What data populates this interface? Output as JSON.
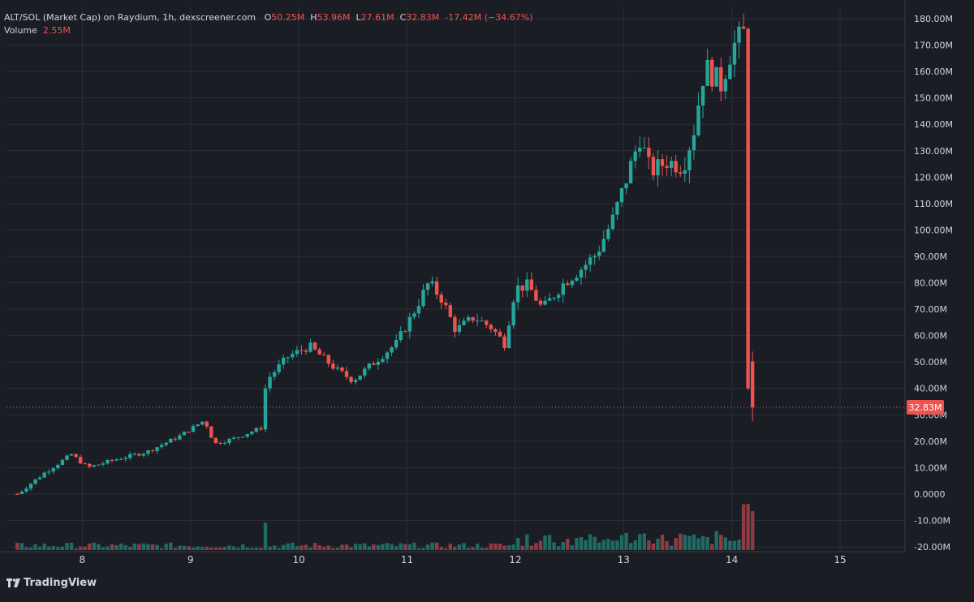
{
  "legend": {
    "symbol": "ALT/SOL (Market Cap) on Raydium, 1h, dexscreener.com",
    "open_label": "O",
    "open": "50.25M",
    "high_label": "H",
    "high": "53.96M",
    "low_label": "L",
    "low": "27.61M",
    "close_label": "C",
    "close": "32.83M",
    "change": "-17.42M (−34.67%)",
    "volume_label": "Volume",
    "volume": "2.55M"
  },
  "brand": {
    "name": "TradingView",
    "logo_icon": "tradingview-logo-icon"
  },
  "colors": {
    "background": "#1b1d24",
    "grid": "#2a2e39",
    "up": "#26a69a",
    "down": "#ef5350",
    "text": "#d1d4dc",
    "volume_up": "#1f6b63",
    "volume_down": "#8f3b43"
  },
  "chart_data": {
    "type": "candlestick",
    "interval": "1h",
    "symbol": "ALT/SOL (Market Cap) on Raydium",
    "y_unit": "M",
    "ylim": [
      -20,
      180
    ],
    "y_ticks": [
      "180.00M",
      "170.00M",
      "160.00M",
      "150.00M",
      "140.00M",
      "130.00M",
      "120.00M",
      "110.00M",
      "100.00M",
      "90.00M",
      "80.00M",
      "70.00M",
      "60.00M",
      "50.00M",
      "40.00M",
      "30.00M",
      "20.00M",
      "10.00M",
      "0.0000",
      "-10.00M",
      "-20.00M"
    ],
    "y_tick_values": [
      180,
      170,
      160,
      150,
      140,
      130,
      120,
      110,
      100,
      90,
      80,
      70,
      60,
      50,
      40,
      30,
      20,
      10,
      0,
      -10,
      -20
    ],
    "x_ticks": [
      "8",
      "9",
      "10",
      "11",
      "12",
      "13",
      "14",
      "15"
    ],
    "x_tick_days": [
      8,
      9,
      10,
      11,
      12,
      13,
      14,
      15
    ],
    "x_range_days": [
      7.3,
      15.6
    ],
    "current_price_label": "32.83M",
    "current_price": 32.83,
    "grid": true,
    "anchors": [
      [
        7.4,
        0
      ],
      [
        7.65,
        8
      ],
      [
        7.9,
        15
      ],
      [
        8.05,
        10
      ],
      [
        8.3,
        13
      ],
      [
        8.6,
        16
      ],
      [
        8.9,
        22
      ],
      [
        9.13,
        28
      ],
      [
        9.22,
        19
      ],
      [
        9.4,
        21
      ],
      [
        9.65,
        25
      ],
      [
        9.7,
        43
      ],
      [
        9.9,
        52
      ],
      [
        10.1,
        56
      ],
      [
        10.35,
        47
      ],
      [
        10.5,
        43
      ],
      [
        10.7,
        50
      ],
      [
        10.9,
        57
      ],
      [
        11.05,
        68
      ],
      [
        11.2,
        80
      ],
      [
        11.32,
        74
      ],
      [
        11.45,
        62
      ],
      [
        11.62,
        67
      ],
      [
        11.78,
        63
      ],
      [
        11.9,
        57
      ],
      [
        12.0,
        78
      ],
      [
        12.12,
        79
      ],
      [
        12.25,
        70
      ],
      [
        12.45,
        80
      ],
      [
        12.6,
        85
      ],
      [
        12.75,
        91
      ],
      [
        12.9,
        104
      ],
      [
        13.0,
        116
      ],
      [
        13.15,
        135
      ],
      [
        13.25,
        122
      ],
      [
        13.4,
        126
      ],
      [
        13.55,
        124
      ],
      [
        13.65,
        138
      ],
      [
        13.75,
        162
      ],
      [
        13.9,
        155
      ],
      [
        14.0,
        169
      ],
      [
        14.12,
        175
      ],
      [
        14.15,
        40
      ],
      [
        14.2,
        30
      ]
    ],
    "volume_profile_ylim": [
      0,
      3.2
    ],
    "volume_notes": "Volume bars at chart bottom, colored by candle direction; spike at final candles"
  }
}
